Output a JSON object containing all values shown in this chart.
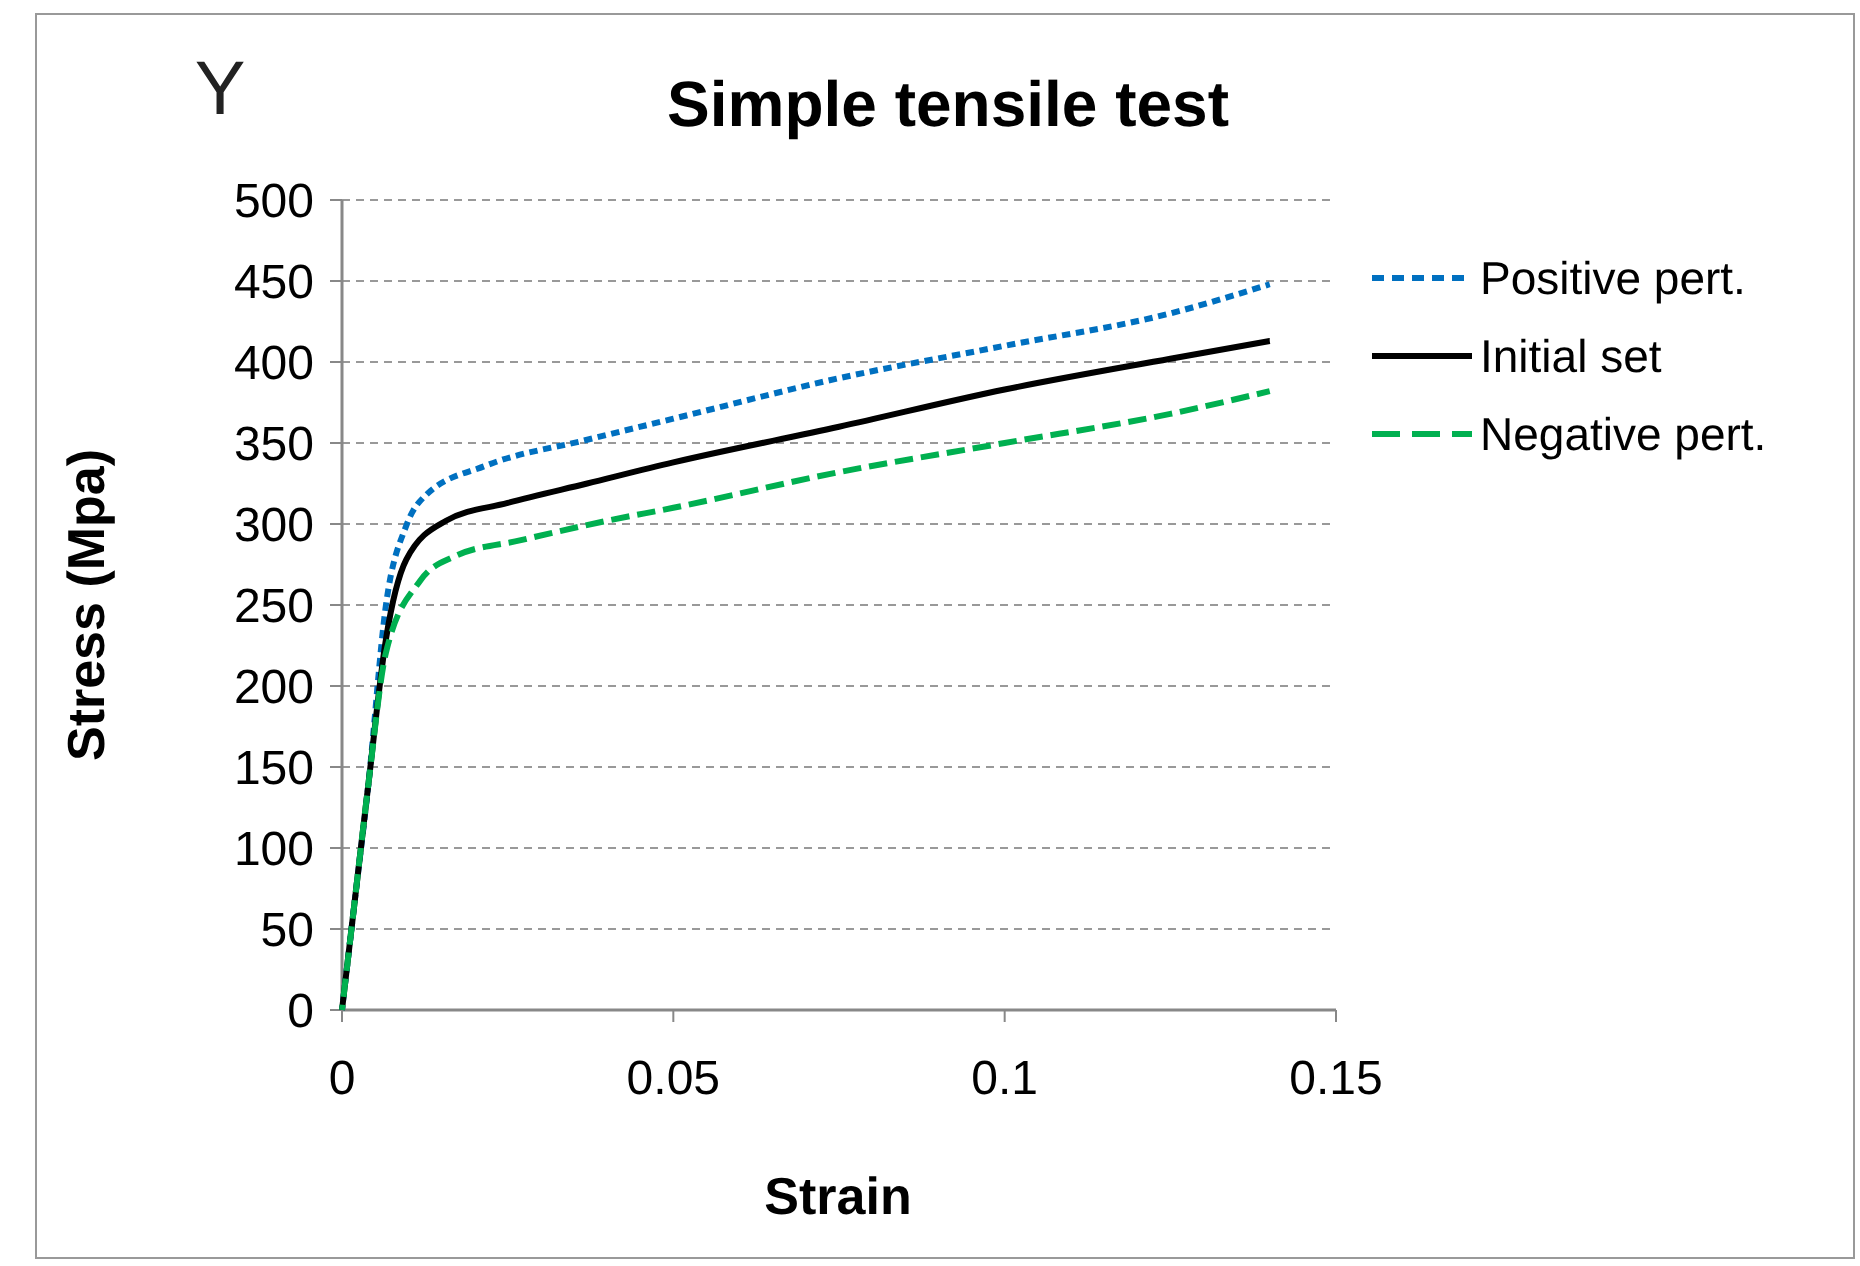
{
  "chart_data": {
    "type": "line",
    "title": "Simple tensile test",
    "xlabel": "Strain",
    "ylabel": "Stress (Mpa)",
    "annotations": [
      "Y"
    ],
    "xlim": [
      0,
      0.15
    ],
    "xticks": [
      0,
      0.05,
      0.1,
      0.15
    ],
    "ylim": [
      0,
      500
    ],
    "yticks": [
      0,
      50,
      100,
      150,
      200,
      250,
      300,
      350,
      400,
      450,
      500
    ],
    "grid": "y",
    "legend": "right",
    "marker": "none",
    "series": [
      {
        "name": "Positive pert.",
        "color": "#0070c0",
        "line_style": "dotted",
        "x": [
          0,
          0.002,
          0.004,
          0.0066,
          0.0097,
          0.0127,
          0.0217,
          0.037,
          0.05,
          0.075,
          0.1,
          0.125,
          0.14
        ],
        "values": [
          0,
          70,
          140,
          249,
          299,
          318,
          336,
          352,
          365,
          390,
          410,
          430,
          448
        ]
      },
      {
        "name": "Initial set",
        "color": "#000000",
        "line_style": "solid",
        "x": [
          0,
          0.002,
          0.004,
          0.0066,
          0.0097,
          0.0157,
          0.025,
          0.037,
          0.05,
          0.075,
          0.1,
          0.125,
          0.14
        ],
        "values": [
          0,
          70,
          140,
          228,
          278,
          302,
          313,
          325,
          338,
          360,
          383,
          402,
          413
        ]
      },
      {
        "name": "Negative pert.",
        "color": "#00b050",
        "line_style": "dashed",
        "x": [
          0,
          0.002,
          0.004,
          0.0066,
          0.0118,
          0.017,
          0.027,
          0.04,
          0.05,
          0.075,
          0.1,
          0.125,
          0.14
        ],
        "values": [
          0,
          70,
          140,
          220,
          265,
          280,
          290,
          302,
          310,
          332,
          350,
          368,
          382
        ]
      }
    ]
  }
}
